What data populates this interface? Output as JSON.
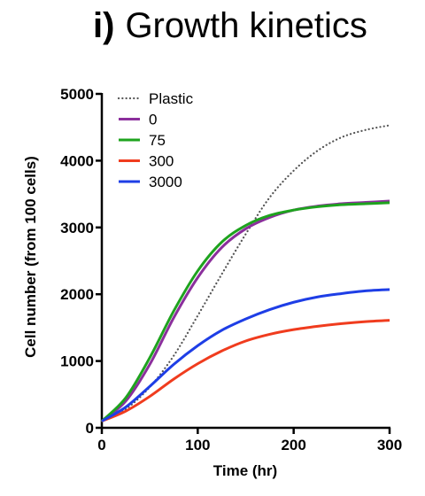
{
  "chart_data": {
    "type": "line",
    "title_label": "i)",
    "title": "Growth kinetics",
    "xlabel": "Time (hr)",
    "ylabel": "Cell number (from 100 cells)",
    "xlim": [
      0,
      300
    ],
    "ylim": [
      0,
      5000
    ],
    "xticks": [
      0,
      100,
      200,
      300
    ],
    "yticks": [
      0,
      1000,
      2000,
      3000,
      4000,
      5000
    ],
    "grid": false,
    "legend_position": "top-left",
    "x": [
      0,
      25,
      50,
      75,
      100,
      125,
      150,
      175,
      200,
      225,
      250,
      275,
      300
    ],
    "series": [
      {
        "name": "Plastic",
        "color": "#555555",
        "dash": "dotted",
        "values": [
          100,
          280,
          610,
          1080,
          1680,
          2300,
          2900,
          3450,
          3850,
          4150,
          4350,
          4460,
          4530
        ]
      },
      {
        "name": "0",
        "color": "#8b2f9c",
        "dash": "solid",
        "values": [
          100,
          400,
          950,
          1650,
          2250,
          2700,
          2980,
          3150,
          3260,
          3320,
          3355,
          3375,
          3395
        ]
      },
      {
        "name": "75",
        "color": "#1ea31e",
        "dash": "solid",
        "values": [
          100,
          450,
          1050,
          1750,
          2350,
          2780,
          3030,
          3180,
          3260,
          3310,
          3340,
          3355,
          3370
        ]
      },
      {
        "name": "300",
        "color": "#f03c1e",
        "dash": "solid",
        "values": [
          100,
          250,
          470,
          730,
          960,
          1150,
          1300,
          1400,
          1470,
          1520,
          1560,
          1590,
          1610
        ]
      },
      {
        "name": "3000",
        "color": "#1e3ee6",
        "dash": "solid",
        "values": [
          100,
          310,
          620,
          950,
          1230,
          1460,
          1630,
          1770,
          1880,
          1960,
          2010,
          2050,
          2070
        ]
      }
    ]
  }
}
